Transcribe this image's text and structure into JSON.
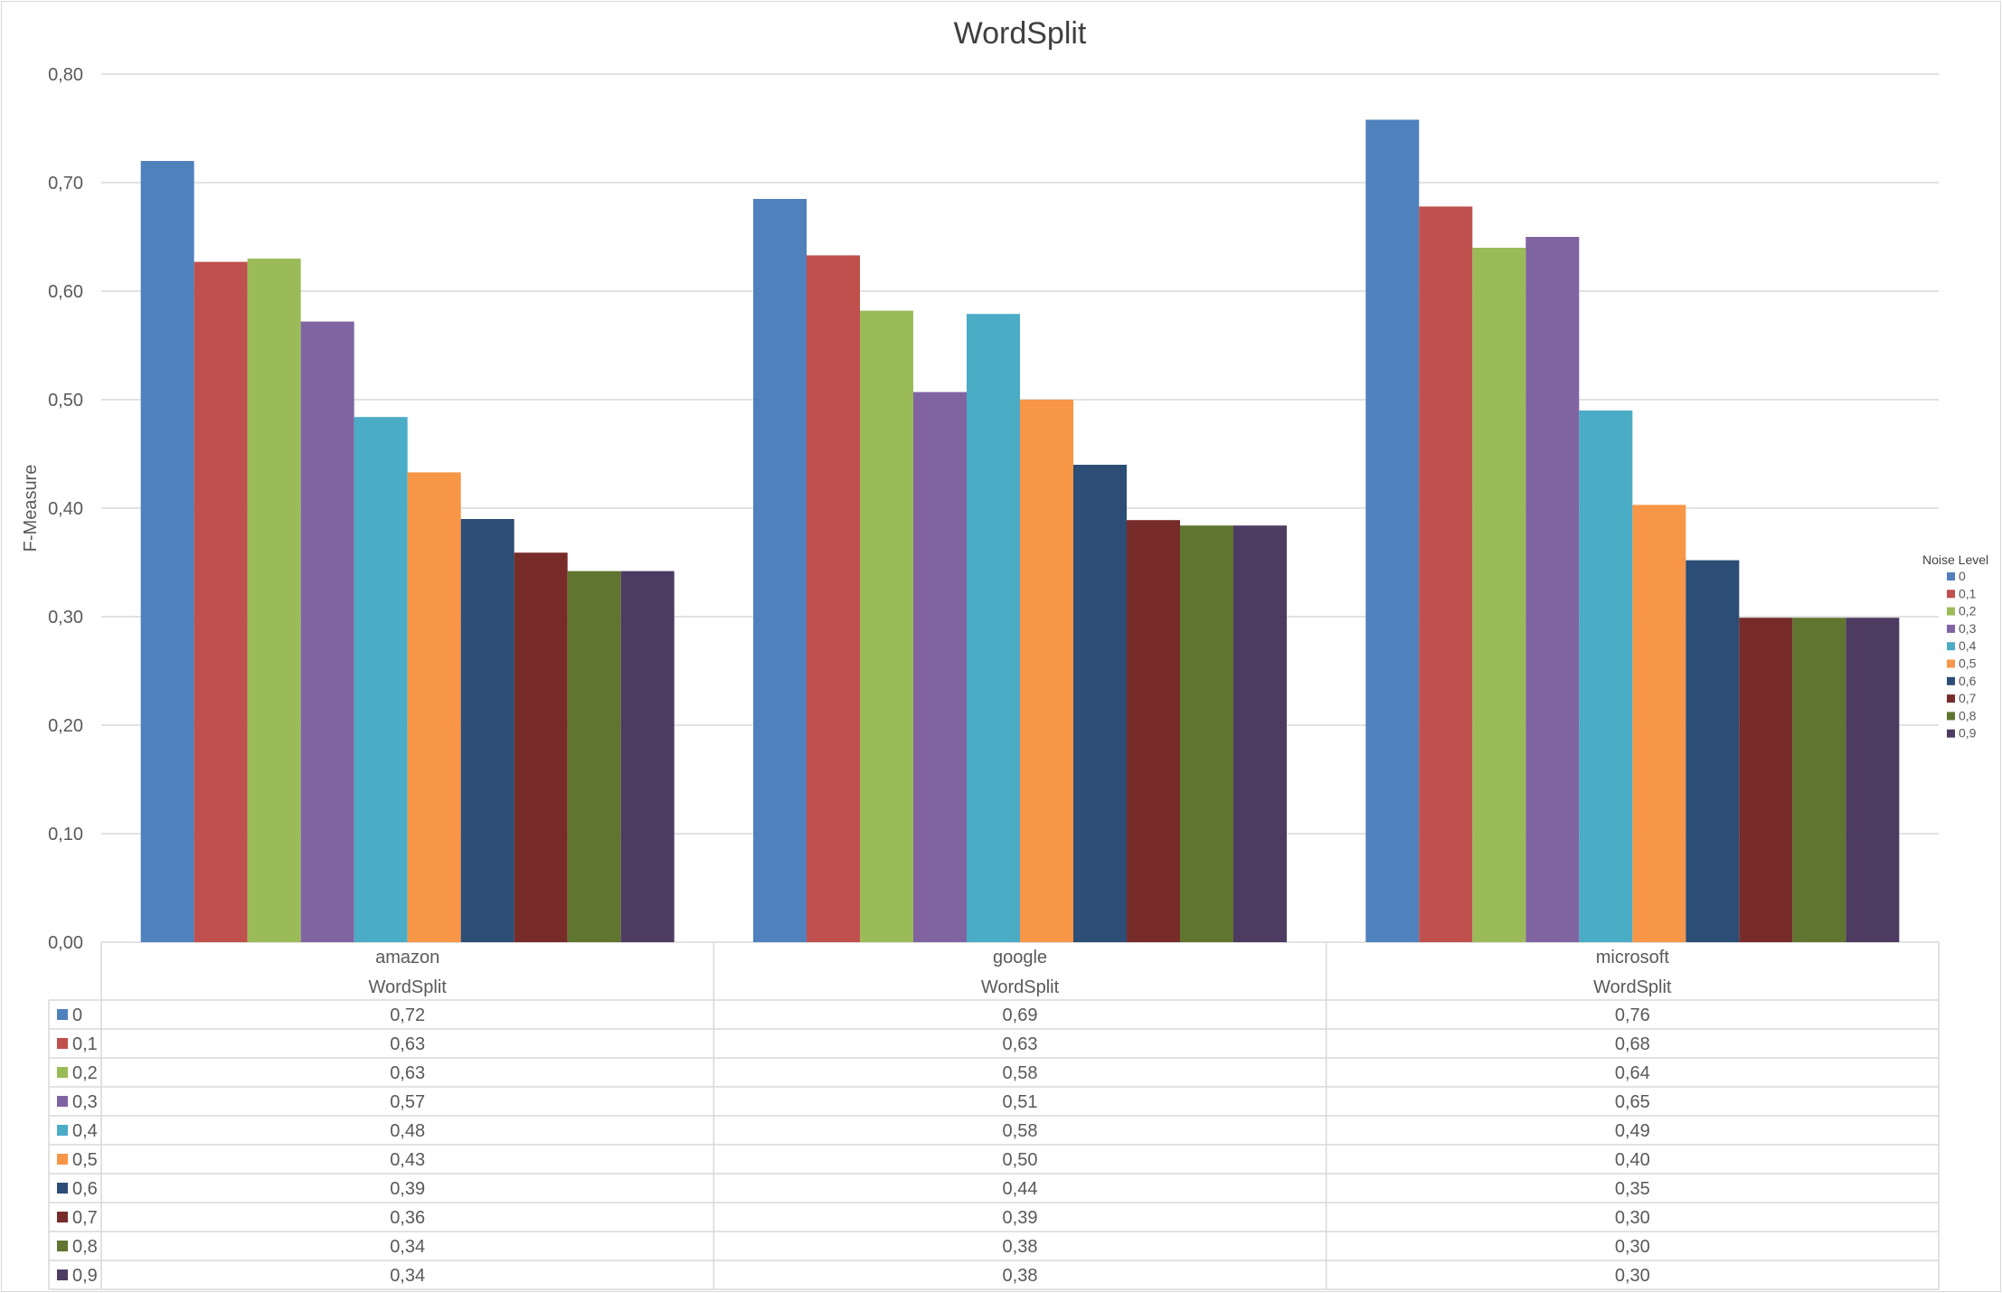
{
  "chart_data": {
    "type": "bar",
    "title": "WordSplit",
    "ylabel": "F-Measure",
    "xlabel": "",
    "ylim": [
      0,
      0.8
    ],
    "yticks": [
      "0,00",
      "0,10",
      "0,20",
      "0,30",
      "0,40",
      "0,50",
      "0,60",
      "0,70",
      "0,80"
    ],
    "y_step": 0.1,
    "grid": true,
    "legend_title": "Noise Level",
    "legend_position": "right",
    "categories": [
      "amazon",
      "google",
      "microsoft"
    ],
    "category_sublabels": [
      "WordSplit",
      "WordSplit",
      "WordSplit"
    ],
    "series": [
      {
        "name": "0",
        "color": "#4F81BD",
        "values": [
          0.72,
          0.685,
          0.758
        ],
        "labels": [
          "0,72",
          "0,69",
          "0,76"
        ]
      },
      {
        "name": "0,1",
        "color": "#C0504D",
        "values": [
          0.627,
          0.633,
          0.678
        ],
        "labels": [
          "0,63",
          "0,63",
          "0,68"
        ]
      },
      {
        "name": "0,2",
        "color": "#9BBB59",
        "values": [
          0.63,
          0.582,
          0.64
        ],
        "labels": [
          "0,63",
          "0,58",
          "0,64"
        ]
      },
      {
        "name": "0,3",
        "color": "#8064A2",
        "values": [
          0.572,
          0.507,
          0.65
        ],
        "labels": [
          "0,57",
          "0,51",
          "0,65"
        ]
      },
      {
        "name": "0,4",
        "color": "#4BACC6",
        "values": [
          0.484,
          0.579,
          0.49
        ],
        "labels": [
          "0,48",
          "0,58",
          "0,49"
        ]
      },
      {
        "name": "0,5",
        "color": "#F79646",
        "values": [
          0.433,
          0.5,
          0.403
        ],
        "labels": [
          "0,43",
          "0,50",
          "0,40"
        ]
      },
      {
        "name": "0,6",
        "color": "#2C4D75",
        "values": [
          0.39,
          0.44,
          0.352
        ],
        "labels": [
          "0,39",
          "0,44",
          "0,35"
        ]
      },
      {
        "name": "0,7",
        "color": "#772C2A",
        "values": [
          0.359,
          0.389,
          0.299
        ],
        "labels": [
          "0,36",
          "0,39",
          "0,30"
        ]
      },
      {
        "name": "0,8",
        "color": "#5F7530",
        "values": [
          0.342,
          0.384,
          0.299
        ],
        "labels": [
          "0,34",
          "0,38",
          "0,30"
        ]
      },
      {
        "name": "0,9",
        "color": "#4D3B62",
        "values": [
          0.342,
          0.384,
          0.299
        ],
        "labels": [
          "0,34",
          "0,38",
          "0,30"
        ]
      }
    ]
  }
}
